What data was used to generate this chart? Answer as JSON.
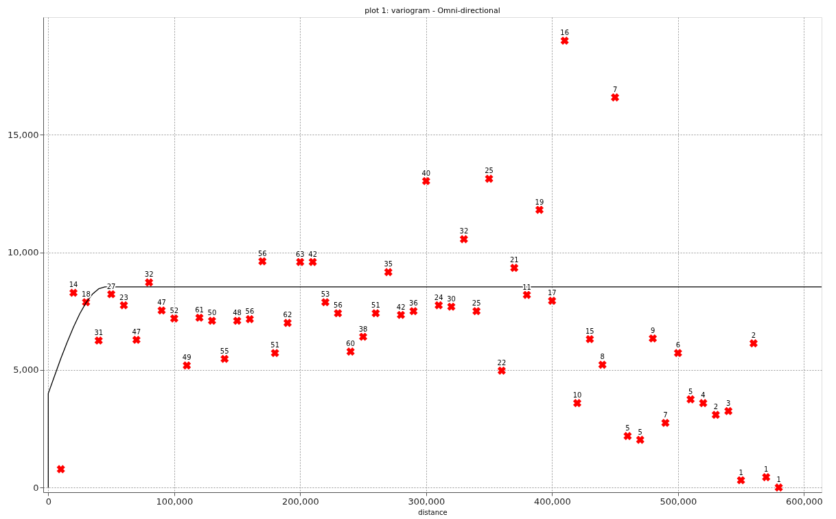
{
  "chart_data": {
    "type": "scatter",
    "title": "plot 1:  variogram - Omni-directional",
    "xlabel": "distance",
    "grid": true,
    "xlim": [
      -4000,
      614000
    ],
    "ylim": [
      -200,
      20000
    ],
    "xticks": [
      0,
      {
        "value": 100000,
        "label": "100,000"
      },
      {
        "value": 200000,
        "label": "200,000"
      },
      {
        "value": 300000,
        "label": "300,000"
      },
      {
        "value": 400000,
        "label": "400,000"
      },
      {
        "value": 500000,
        "label": "500,000"
      },
      {
        "value": 600000,
        "label": "600,000"
      }
    ],
    "yticks": [
      0,
      {
        "value": 5000,
        "label": "5,000"
      },
      {
        "value": 10000,
        "label": "10,000"
      },
      {
        "value": 15000,
        "label": "15,000"
      }
    ],
    "series": [
      {
        "color": "#ff0000",
        "marker": "cross",
        "x": [
          10000,
          20000,
          30000,
          40000,
          50000,
          60000,
          70000,
          80000,
          90000,
          100000,
          110000,
          120000,
          130000,
          140000,
          150000,
          160000,
          170000,
          180000,
          190000,
          200000,
          210000,
          220000,
          230000,
          240000,
          250000,
          260000,
          270000,
          280000,
          290000,
          300000,
          310000,
          320000,
          330000,
          340000,
          350000,
          360000,
          370000,
          380000,
          390000,
          400000,
          410000,
          420000,
          430000,
          440000,
          450000,
          460000,
          470000,
          480000,
          490000,
          500000,
          510000,
          520000,
          530000,
          540000,
          550000,
          560000,
          570000,
          580000
        ],
        "values": [
          780,
          8280,
          7880,
          6250,
          8220,
          7750,
          6280,
          8720,
          7530,
          7190,
          5190,
          7220,
          7090,
          5470,
          7090,
          7160,
          9620,
          5720,
          7000,
          9590,
          9590,
          7880,
          7410,
          5780,
          6410,
          7410,
          9160,
          7340,
          7500,
          13030,
          7750,
          7690,
          10560,
          7500,
          13130,
          4970,
          9340,
          8190,
          11810,
          7940,
          19000,
          3590,
          6310,
          5220,
          16590,
          2190,
          2030,
          6340,
          2750,
          5720,
          3750,
          3590,
          3090,
          3250,
          310,
          6130,
          440,
          0
        ]
      },
      {
        "type": "line",
        "color": "#000000",
        "line_style": "solid",
        "marker": "none",
        "x": [
          0,
          0,
          5000,
          10000,
          15000,
          20000,
          25000,
          30000,
          35000,
          40000,
          45000,
          614000
        ],
        "values": [
          0,
          4000,
          4750,
          5490,
          6180,
          6820,
          7390,
          7860,
          8220,
          8450,
          8530,
          8530
        ]
      }
    ],
    "annotations": [
      {
        "text": "14",
        "x": 20000,
        "y": 8280
      },
      {
        "text": "18",
        "x": 30000,
        "y": 7880
      },
      {
        "text": "31",
        "x": 40000,
        "y": 6250
      },
      {
        "text": "27",
        "x": 50000,
        "y": 8220
      },
      {
        "text": "23",
        "x": 60000,
        "y": 7750
      },
      {
        "text": "47",
        "x": 70000,
        "y": 6280
      },
      {
        "text": "32",
        "x": 80000,
        "y": 8720
      },
      {
        "text": "47",
        "x": 90000,
        "y": 7530
      },
      {
        "text": "52",
        "x": 100000,
        "y": 7190
      },
      {
        "text": "49",
        "x": 110000,
        "y": 5190
      },
      {
        "text": "61",
        "x": 120000,
        "y": 7220
      },
      {
        "text": "50",
        "x": 130000,
        "y": 7090
      },
      {
        "text": "55",
        "x": 140000,
        "y": 5470
      },
      {
        "text": "48",
        "x": 150000,
        "y": 7090
      },
      {
        "text": "56",
        "x": 160000,
        "y": 7160
      },
      {
        "text": "56",
        "x": 170000,
        "y": 9620
      },
      {
        "text": "51",
        "x": 180000,
        "y": 5720
      },
      {
        "text": "62",
        "x": 190000,
        "y": 7000
      },
      {
        "text": "63",
        "x": 200000,
        "y": 9590
      },
      {
        "text": "42",
        "x": 210000,
        "y": 9590
      },
      {
        "text": "53",
        "x": 220000,
        "y": 7880
      },
      {
        "text": "56",
        "x": 230000,
        "y": 7410
      },
      {
        "text": "60",
        "x": 240000,
        "y": 5780
      },
      {
        "text": "38",
        "x": 250000,
        "y": 6410
      },
      {
        "text": "51",
        "x": 260000,
        "y": 7410
      },
      {
        "text": "35",
        "x": 270000,
        "y": 9160
      },
      {
        "text": "42",
        "x": 280000,
        "y": 7340
      },
      {
        "text": "36",
        "x": 290000,
        "y": 7500
      },
      {
        "text": "40",
        "x": 300000,
        "y": 13030
      },
      {
        "text": "24",
        "x": 310000,
        "y": 7750
      },
      {
        "text": "30",
        "x": 320000,
        "y": 7690
      },
      {
        "text": "32",
        "x": 330000,
        "y": 10560
      },
      {
        "text": "25",
        "x": 340000,
        "y": 7500
      },
      {
        "text": "25",
        "x": 350000,
        "y": 13130
      },
      {
        "text": "22",
        "x": 360000,
        "y": 4970
      },
      {
        "text": "21",
        "x": 370000,
        "y": 9340
      },
      {
        "text": "11",
        "x": 380000,
        "y": 8190
      },
      {
        "text": "19",
        "x": 390000,
        "y": 11810
      },
      {
        "text": "17",
        "x": 400000,
        "y": 7940
      },
      {
        "text": "16",
        "x": 410000,
        "y": 19000
      },
      {
        "text": "10",
        "x": 420000,
        "y": 3590
      },
      {
        "text": "15",
        "x": 430000,
        "y": 6310
      },
      {
        "text": "8",
        "x": 440000,
        "y": 5220
      },
      {
        "text": "7",
        "x": 450000,
        "y": 16590
      },
      {
        "text": "5",
        "x": 460000,
        "y": 2190
      },
      {
        "text": "5",
        "x": 470000,
        "y": 2030
      },
      {
        "text": "9",
        "x": 480000,
        "y": 6340
      },
      {
        "text": "7",
        "x": 490000,
        "y": 2750
      },
      {
        "text": "6",
        "x": 500000,
        "y": 5720
      },
      {
        "text": "5",
        "x": 510000,
        "y": 3750
      },
      {
        "text": "4",
        "x": 520000,
        "y": 3590
      },
      {
        "text": "2",
        "x": 530000,
        "y": 3090
      },
      {
        "text": "3",
        "x": 540000,
        "y": 3250
      },
      {
        "text": "1",
        "x": 550000,
        "y": 310
      },
      {
        "text": "2",
        "x": 560000,
        "y": 6130
      },
      {
        "text": "1",
        "x": 570000,
        "y": 440
      },
      {
        "text": "1",
        "x": 580000,
        "y": 0
      }
    ]
  }
}
